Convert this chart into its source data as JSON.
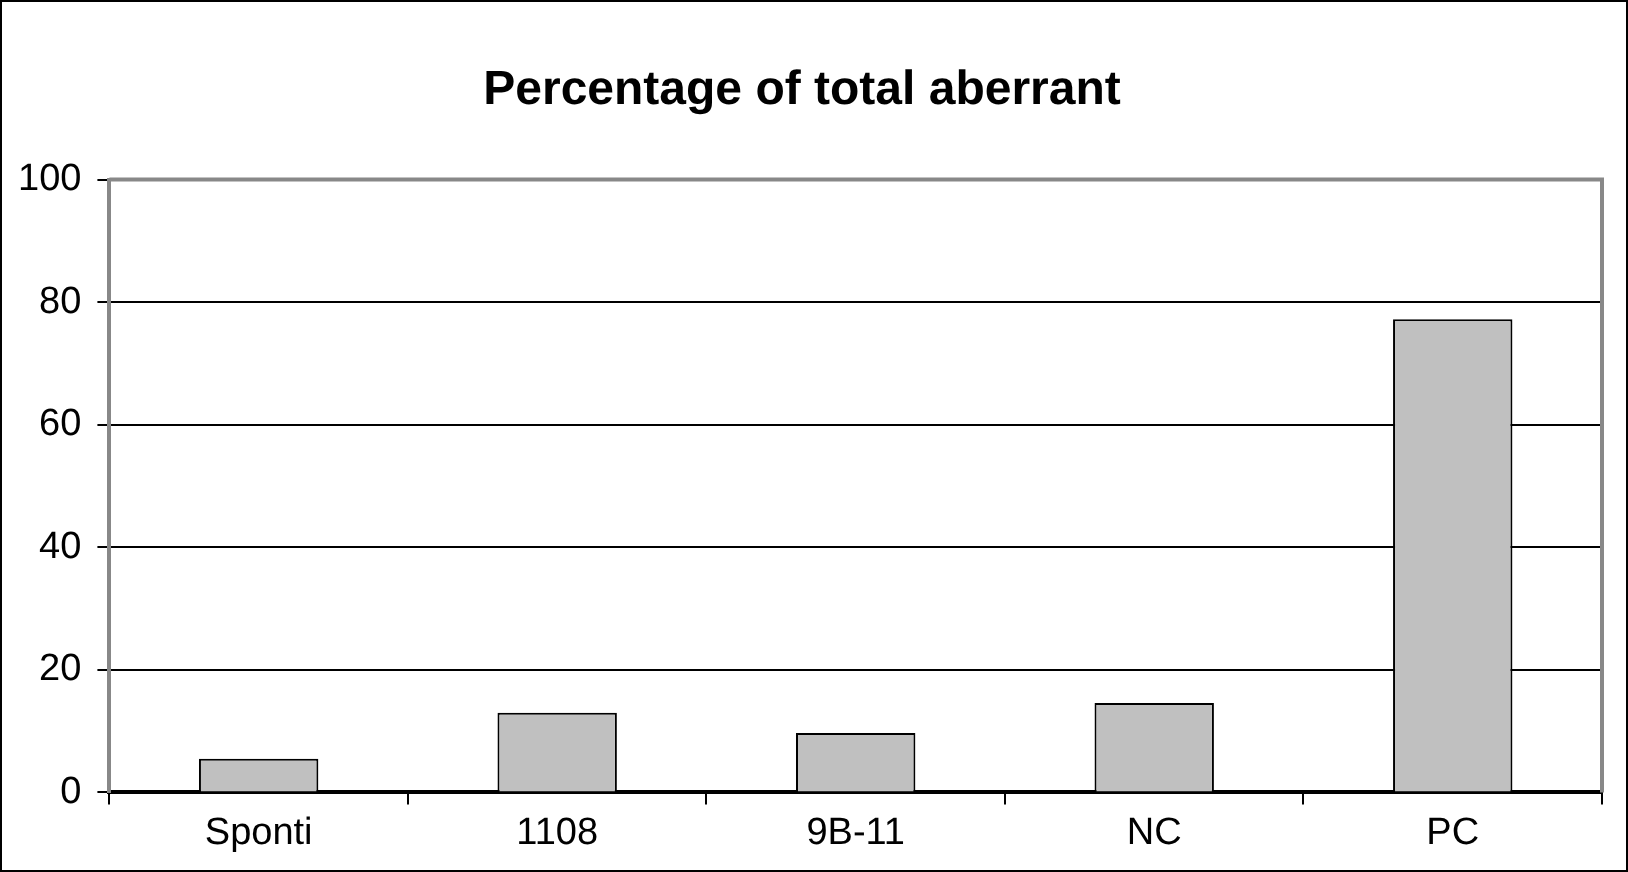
{
  "chart_data": {
    "type": "bar",
    "title": "Percentage of total aberrant",
    "categories": [
      "Sponti",
      "1108",
      "9B-11",
      "NC",
      "PC"
    ],
    "values": [
      5.5,
      13,
      9.7,
      14.6,
      77.2
    ],
    "color": "#c0c0c0",
    "ylim": [
      0,
      100
    ],
    "yticks": [
      0,
      20,
      40,
      60,
      80,
      100
    ],
    "grid": "y",
    "legend": false
  }
}
